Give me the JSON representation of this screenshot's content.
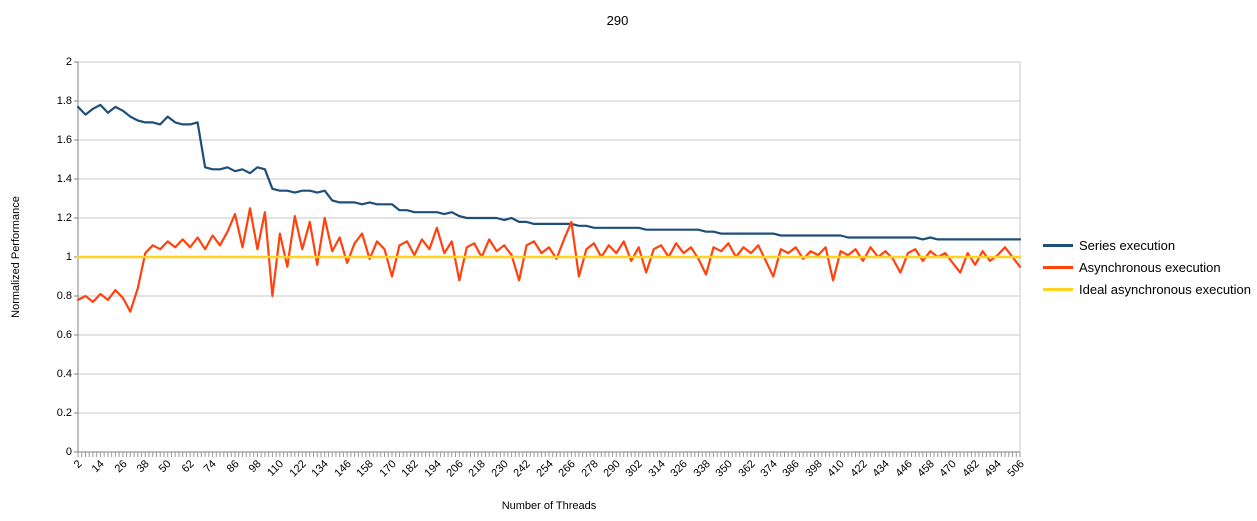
{
  "title": "290",
  "axes": {
    "y_title": "Normalized Performance",
    "x_title": "Number of Threads",
    "y_ticks": [
      "2",
      "1.8",
      "1.6",
      "1.4",
      "1.2",
      "1",
      "0.8",
      "0.6",
      "0.4",
      "0.2",
      "0"
    ],
    "x_tick_labels": [
      "2",
      "14",
      "26",
      "38",
      "50",
      "62",
      "74",
      "86",
      "98",
      "110",
      "122",
      "134",
      "146",
      "158",
      "170",
      "182",
      "194",
      "206",
      "218",
      "230",
      "242",
      "254",
      "266",
      "278",
      "290",
      "302",
      "314",
      "326",
      "338",
      "350",
      "362",
      "374",
      "386",
      "398",
      "410",
      "422",
      "434",
      "446",
      "458",
      "470",
      "482",
      "494",
      "506"
    ]
  },
  "legend": [
    {
      "label": "Series execution",
      "color": "#1f4e79"
    },
    {
      "label": "Asynchronous execution",
      "color": "#ff420e"
    },
    {
      "label": "Ideal asynchronous execution",
      "color": "#ffd320"
    }
  ],
  "colors": {
    "grid": "#c9c9c9",
    "axis": "#808080",
    "tick": "#9a9a9a",
    "text": "#000000",
    "background": "#ffffff"
  },
  "chart_data": {
    "type": "line",
    "title": "290",
    "xlabel": "Number of Threads",
    "ylabel": "Normalized Performance",
    "xlim": [
      2,
      506
    ],
    "ylim": [
      0,
      2
    ],
    "y_tick_step": 0.2,
    "x_label_step": 12,
    "grid": "horizontal",
    "legend_position": "right",
    "x": [
      2,
      6,
      10,
      14,
      18,
      22,
      26,
      30,
      34,
      38,
      42,
      46,
      50,
      54,
      58,
      62,
      66,
      70,
      74,
      78,
      82,
      86,
      90,
      94,
      98,
      102,
      106,
      110,
      114,
      118,
      122,
      126,
      130,
      134,
      138,
      142,
      146,
      150,
      154,
      158,
      162,
      166,
      170,
      174,
      178,
      182,
      186,
      190,
      194,
      198,
      202,
      206,
      210,
      214,
      218,
      222,
      226,
      230,
      234,
      238,
      242,
      246,
      250,
      254,
      258,
      262,
      266,
      270,
      274,
      278,
      282,
      286,
      290,
      294,
      298,
      302,
      306,
      310,
      314,
      318,
      322,
      326,
      330,
      334,
      338,
      342,
      346,
      350,
      354,
      358,
      362,
      366,
      370,
      374,
      378,
      382,
      386,
      390,
      394,
      398,
      402,
      406,
      410,
      414,
      418,
      422,
      426,
      430,
      434,
      438,
      442,
      446,
      450,
      454,
      458,
      462,
      466,
      470,
      474,
      478,
      482,
      486,
      490,
      494,
      498,
      502,
      506
    ],
    "series": [
      {
        "name": "Series execution",
        "color": "#1f4e79",
        "width": 2.2,
        "values": [
          1.77,
          1.73,
          1.76,
          1.78,
          1.74,
          1.77,
          1.75,
          1.72,
          1.7,
          1.69,
          1.69,
          1.68,
          1.72,
          1.69,
          1.68,
          1.68,
          1.69,
          1.46,
          1.45,
          1.45,
          1.46,
          1.44,
          1.45,
          1.43,
          1.46,
          1.45,
          1.35,
          1.34,
          1.34,
          1.33,
          1.34,
          1.34,
          1.33,
          1.34,
          1.29,
          1.28,
          1.28,
          1.28,
          1.27,
          1.28,
          1.27,
          1.27,
          1.27,
          1.24,
          1.24,
          1.23,
          1.23,
          1.23,
          1.23,
          1.22,
          1.23,
          1.21,
          1.2,
          1.2,
          1.2,
          1.2,
          1.2,
          1.19,
          1.2,
          1.18,
          1.18,
          1.17,
          1.17,
          1.17,
          1.17,
          1.17,
          1.17,
          1.16,
          1.16,
          1.15,
          1.15,
          1.15,
          1.15,
          1.15,
          1.15,
          1.15,
          1.14,
          1.14,
          1.14,
          1.14,
          1.14,
          1.14,
          1.14,
          1.14,
          1.13,
          1.13,
          1.12,
          1.12,
          1.12,
          1.12,
          1.12,
          1.12,
          1.12,
          1.12,
          1.11,
          1.11,
          1.11,
          1.11,
          1.11,
          1.11,
          1.11,
          1.11,
          1.11,
          1.1,
          1.1,
          1.1,
          1.1,
          1.1,
          1.1,
          1.1,
          1.1,
          1.1,
          1.1,
          1.09,
          1.1,
          1.09,
          1.09,
          1.09,
          1.09,
          1.09,
          1.09,
          1.09,
          1.09,
          1.09,
          1.09,
          1.09,
          1.09
        ]
      },
      {
        "name": "Asynchronous execution",
        "color": "#ff420e",
        "width": 2.2,
        "values": [
          0.78,
          0.8,
          0.77,
          0.81,
          0.78,
          0.83,
          0.79,
          0.72,
          0.84,
          1.02,
          1.06,
          1.04,
          1.08,
          1.05,
          1.09,
          1.05,
          1.1,
          1.04,
          1.11,
          1.06,
          1.13,
          1.22,
          1.05,
          1.25,
          1.04,
          1.23,
          0.8,
          1.12,
          0.95,
          1.21,
          1.04,
          1.18,
          0.96,
          1.2,
          1.03,
          1.1,
          0.97,
          1.07,
          1.12,
          0.99,
          1.08,
          1.04,
          0.9,
          1.06,
          1.08,
          1.01,
          1.09,
          1.04,
          1.15,
          1.02,
          1.08,
          0.88,
          1.05,
          1.07,
          1.0,
          1.09,
          1.03,
          1.06,
          1.01,
          0.88,
          1.06,
          1.08,
          1.02,
          1.05,
          0.99,
          1.09,
          1.18,
          0.9,
          1.04,
          1.07,
          1.0,
          1.06,
          1.02,
          1.08,
          0.98,
          1.05,
          0.92,
          1.04,
          1.06,
          1.0,
          1.07,
          1.02,
          1.05,
          0.99,
          0.91,
          1.05,
          1.03,
          1.07,
          1.0,
          1.05,
          1.02,
          1.06,
          0.98,
          0.9,
          1.04,
          1.02,
          1.05,
          0.99,
          1.03,
          1.01,
          1.05,
          0.88,
          1.03,
          1.01,
          1.04,
          0.98,
          1.05,
          1.0,
          1.03,
          0.99,
          0.92,
          1.02,
          1.04,
          0.98,
          1.03,
          1.0,
          1.02,
          0.97,
          0.92,
          1.02,
          0.96,
          1.03,
          0.98,
          1.01,
          1.05,
          1.0,
          0.95
        ]
      },
      {
        "name": "Ideal asynchronous execution",
        "color": "#ffd320",
        "width": 2.6,
        "constant": 1
      }
    ]
  }
}
